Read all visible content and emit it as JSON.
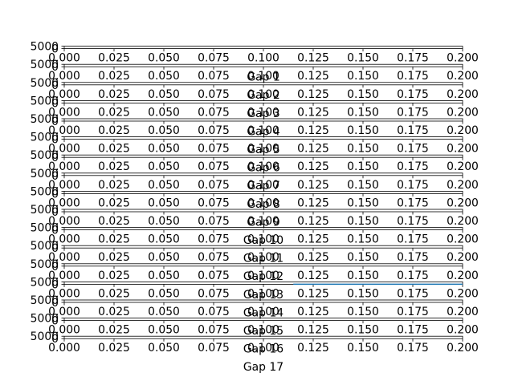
{
  "colors": {
    "axis": "#000000",
    "series": "#1f77b4",
    "background": "#ffffff"
  },
  "chart_data": {
    "type": "line",
    "layout": "vertical stack of 17 subplots sharing the same x axis",
    "x_tick_labels": [
      "0.000",
      "0.025",
      "0.050",
      "0.075",
      "0.100",
      "0.125",
      "0.150",
      "0.175",
      "0.200"
    ],
    "x_ticks": [
      0.0,
      0.025,
      0.05,
      0.075,
      0.1,
      0.125,
      0.15,
      0.175,
      0.2
    ],
    "xlim": [
      0.0,
      0.2
    ],
    "y_tick_labels": [
      "0",
      "5000"
    ],
    "y_ticks": [
      0,
      5000
    ],
    "ylim": [
      0,
      5000
    ],
    "grid": false,
    "legend": "none",
    "subplots": [
      {
        "xlabel": "Gap 1",
        "series": []
      },
      {
        "xlabel": "Gap 2",
        "series": []
      },
      {
        "xlabel": "Gap 3",
        "series": []
      },
      {
        "xlabel": "Gap 4",
        "series": []
      },
      {
        "xlabel": "Gap 5",
        "series": []
      },
      {
        "xlabel": "Gap 6",
        "series": []
      },
      {
        "xlabel": "Gap 7",
        "series": []
      },
      {
        "xlabel": "Gap 8",
        "series": []
      },
      {
        "xlabel": "Gap 9",
        "series": []
      },
      {
        "xlabel": "Gap 10",
        "series": []
      },
      {
        "xlabel": "Gap 11",
        "series": []
      },
      {
        "xlabel": "Gap 12",
        "series": []
      },
      {
        "xlabel": "Gap 13",
        "series": []
      },
      {
        "xlabel": "Gap 14",
        "series": [
          {
            "x": [
              0.115,
              0.2
            ],
            "y": [
              0,
              0
            ]
          }
        ]
      },
      {
        "xlabel": "Gap 15",
        "series": []
      },
      {
        "xlabel": "Gap 16",
        "series": []
      },
      {
        "xlabel": "Gap 17",
        "series": []
      }
    ]
  }
}
